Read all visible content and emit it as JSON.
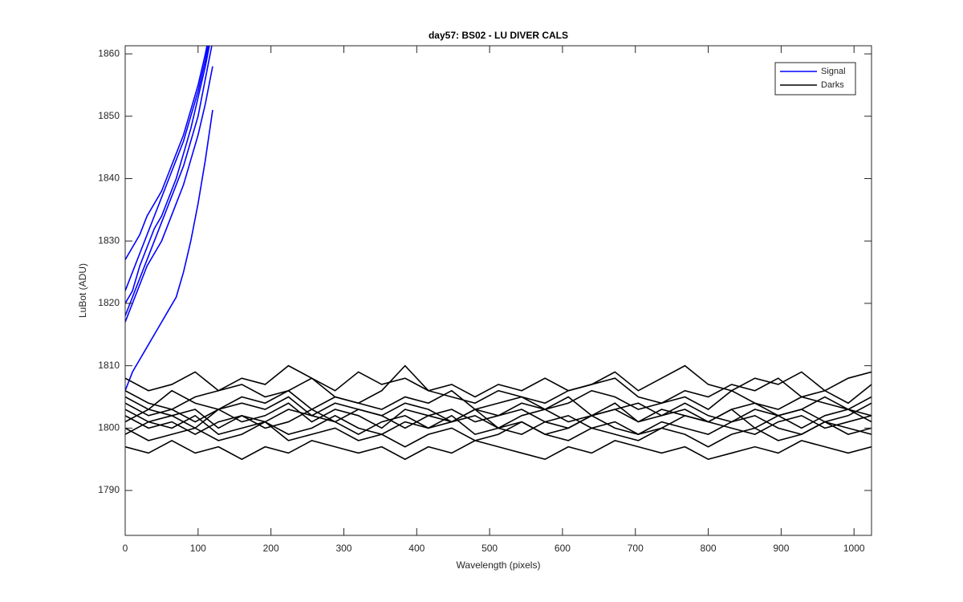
{
  "chart_data": {
    "type": "line",
    "title": "day57: BS02 - LU DIVER CALS",
    "xlabel": "Wavelength (pixels)",
    "ylabel": "LuBot (ADU)",
    "xlim": [
      0,
      1024
    ],
    "ylim": [
      1782.8,
      1861.3
    ],
    "xticks": [
      0,
      100,
      200,
      300,
      400,
      500,
      600,
      700,
      800,
      900,
      1000
    ],
    "yticks": [
      1790,
      1800,
      1810,
      1820,
      1830,
      1840,
      1850,
      1860
    ],
    "legend": "upper right",
    "series": [
      {
        "name": "Signal",
        "color": "#0000ff",
        "x": [
          0,
          10,
          20,
          30,
          40,
          50,
          60,
          70,
          80,
          90,
          100,
          110,
          120
        ],
        "lines": [
          [
            1827,
            1829,
            1831,
            1834,
            1836,
            1838,
            1841,
            1844,
            1847,
            1851,
            1855,
            1860,
            1866
          ],
          [
            1822,
            1825,
            1828,
            1831,
            1834,
            1837,
            1840,
            1843,
            1846,
            1850,
            1854,
            1859,
            1865
          ],
          [
            1820,
            1822,
            1826,
            1829,
            1832,
            1834,
            1837,
            1840,
            1844,
            1848,
            1853,
            1858,
            1864
          ],
          [
            1818,
            1821,
            1824,
            1827,
            1830,
            1833,
            1836,
            1839,
            1842,
            1846,
            1850,
            1856,
            1862
          ],
          [
            1817,
            1820,
            1823,
            1826,
            1828,
            1830,
            1833,
            1836,
            1839,
            1843,
            1847,
            1852,
            1858
          ],
          [
            1806,
            1809,
            1811,
            1813,
            1815,
            1817,
            1819,
            1821,
            1825,
            1830,
            1836,
            1843,
            1851
          ]
        ]
      },
      {
        "name": "Darks",
        "color": "#000000",
        "x": [
          0,
          32,
          64,
          96,
          128,
          160,
          192,
          224,
          256,
          288,
          320,
          352,
          384,
          416,
          448,
          480,
          512,
          544,
          576,
          608,
          640,
          672,
          704,
          736,
          768,
          800,
          832,
          864,
          896,
          928,
          960,
          992,
          1024
        ],
        "lines": [
          [
            1808,
            1806,
            1807,
            1809,
            1806,
            1808,
            1807,
            1810,
            1808,
            1806,
            1809,
            1807,
            1808,
            1806,
            1807,
            1805,
            1807,
            1806,
            1808,
            1806,
            1807,
            1809,
            1806,
            1808,
            1810,
            1807,
            1806,
            1808,
            1807,
            1809,
            1806,
            1808,
            1809
          ],
          [
            1806,
            1804,
            1803,
            1805,
            1806,
            1807,
            1805,
            1806,
            1808,
            1805,
            1804,
            1806,
            1810,
            1806,
            1805,
            1804,
            1806,
            1805,
            1804,
            1806,
            1807,
            1808,
            1805,
            1804,
            1806,
            1805,
            1807,
            1806,
            1808,
            1805,
            1806,
            1804,
            1807
          ],
          [
            1804,
            1802,
            1803,
            1801,
            1803,
            1804,
            1803,
            1805,
            1802,
            1804,
            1803,
            1802,
            1804,
            1803,
            1801,
            1803,
            1802,
            1804,
            1803,
            1805,
            1802,
            1803,
            1804,
            1802,
            1803,
            1801,
            1803,
            1804,
            1802,
            1803,
            1805,
            1803,
            1802
          ],
          [
            1803,
            1801,
            1802,
            1803,
            1800,
            1802,
            1801,
            1803,
            1802,
            1801,
            1803,
            1802,
            1800,
            1802,
            1803,
            1801,
            1802,
            1803,
            1801,
            1800,
            1802,
            1803,
            1801,
            1802,
            1804,
            1802,
            1801,
            1803,
            1802,
            1800,
            1802,
            1803,
            1801
          ],
          [
            1802,
            1800,
            1801,
            1799,
            1801,
            1802,
            1800,
            1801,
            1803,
            1801,
            1799,
            1801,
            1802,
            1800,
            1801,
            1802,
            1800,
            1799,
            1801,
            1802,
            1800,
            1801,
            1799,
            1800,
            1802,
            1801,
            1800,
            1799,
            1801,
            1802,
            1800,
            1801,
            1802
          ],
          [
            1800,
            1798,
            1799,
            1800,
            1798,
            1799,
            1801,
            1798,
            1799,
            1800,
            1798,
            1799,
            1797,
            1799,
            1800,
            1798,
            1799,
            1801,
            1799,
            1798,
            1800,
            1799,
            1798,
            1800,
            1799,
            1797,
            1799,
            1800,
            1798,
            1799,
            1801,
            1799,
            1800
          ],
          [
            1797,
            1796,
            1798,
            1796,
            1797,
            1795,
            1797,
            1796,
            1798,
            1797,
            1796,
            1797,
            1795,
            1797,
            1796,
            1798,
            1797,
            1796,
            1795,
            1797,
            1796,
            1798,
            1797,
            1796,
            1797,
            1795,
            1796,
            1797,
            1796,
            1798,
            1797,
            1796,
            1797
          ],
          [
            1805,
            1803,
            1806,
            1804,
            1803,
            1805,
            1804,
            1806,
            1803,
            1805,
            1804,
            1803,
            1805,
            1804,
            1806,
            1803,
            1804,
            1805,
            1803,
            1804,
            1806,
            1805,
            1803,
            1804,
            1805,
            1803,
            1806,
            1804,
            1803,
            1805,
            1804,
            1803,
            1805
          ],
          [
            1799,
            1801,
            1800,
            1802,
            1799,
            1800,
            1801,
            1799,
            1800,
            1802,
            1800,
            1799,
            1801,
            1800,
            1802,
            1799,
            1800,
            1801,
            1799,
            1800,
            1802,
            1800,
            1799,
            1801,
            1800,
            1799,
            1801,
            1802,
            1800,
            1799,
            1801,
            1800,
            1799
          ],
          [
            1801,
            1803,
            1802,
            1800,
            1803,
            1801,
            1802,
            1804,
            1801,
            1803,
            1802,
            1800,
            1803,
            1802,
            1801,
            1803,
            1800,
            1802,
            1803,
            1801,
            1802,
            1804,
            1801,
            1803,
            1802,
            1801,
            1803,
            1800,
            1802,
            1803,
            1801,
            1802,
            1804
          ]
        ]
      }
    ]
  }
}
